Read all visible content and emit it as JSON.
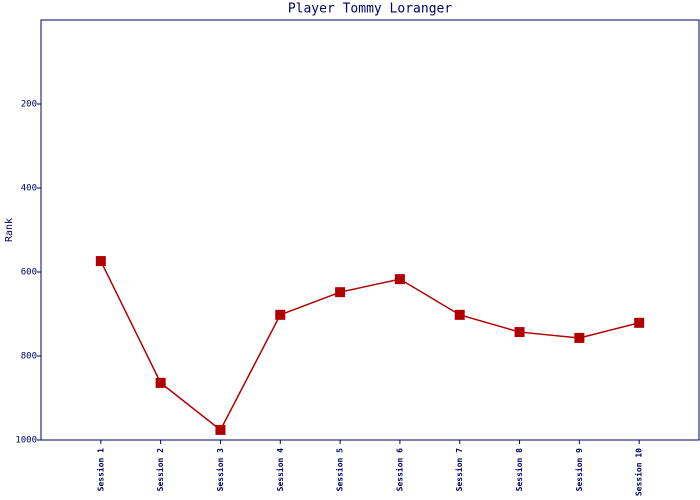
{
  "chart_data": {
    "type": "line",
    "title": "Player Tommy Loranger",
    "ylabel": "Rank",
    "categories": [
      "Session 1",
      "Session 2",
      "Session 3",
      "Session 4",
      "Session 5",
      "Session 6",
      "Session 7",
      "Session 8",
      "Session 9",
      "Session 10"
    ],
    "series": [
      {
        "color": "#b00000",
        "values": [
          574,
          864,
          976,
          702,
          648,
          617,
          702,
          743,
          757,
          721
        ]
      }
    ],
    "ylim": [
      1000,
      0
    ],
    "yticks": [
      200,
      400,
      600,
      800,
      1000
    ],
    "grid": false
  }
}
